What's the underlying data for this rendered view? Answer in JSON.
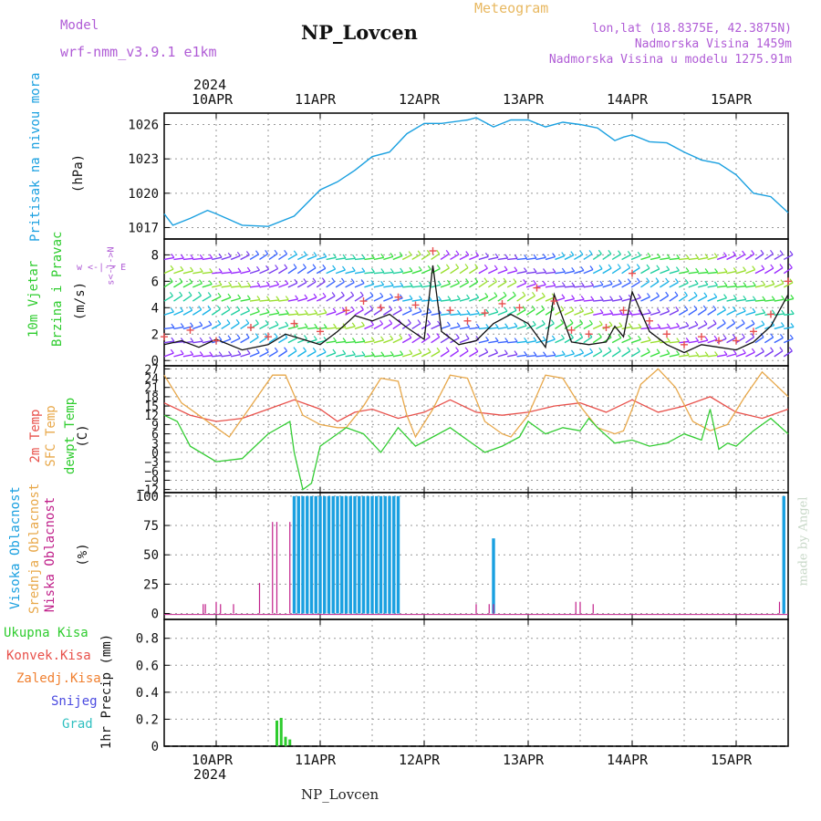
{
  "header": {
    "model_label": "Model",
    "model_name": "wrf-nmm_v3.9.1 e1km",
    "title": "NP_Lovcen",
    "product": "Meteogram",
    "coords": "lon,lat (18.8375E, 42.3875N)",
    "elevation": "Nadmorska Visina 1459m",
    "model_elevation": "Nadmorska Visina u modelu 1275.91m"
  },
  "dates": {
    "year": "2024",
    "days": [
      "10APR",
      "11APR",
      "12APR",
      "13APR",
      "14APR",
      "15APR"
    ]
  },
  "labels": {
    "pressure": "Pritisak na nivou mora",
    "pressure_unit": "(hPa)",
    "wind_1": "10m Vjetar",
    "wind_2": "Brzina i Pravac",
    "wind_unit": "(m/s)",
    "wind_dir_1": "w <-|-> E",
    "wind_dir_2": "s<-|->N",
    "temp_1": "2m Temp",
    "temp_2": "SFC Temp",
    "temp_3": "dewpt Temp",
    "temp_unit": "(C)",
    "cloud_1": "Visoka Oblacnost",
    "cloud_2": "Srednja Oblacnost",
    "cloud_3": "Niska Oblacnost",
    "cloud_unit": "(%)",
    "precip_axis": "1hr Precip (mm)",
    "precip_legend": [
      "Ukupna Kisa",
      "Konvek.Kisa",
      "Zaledj.Kisa",
      "Snijeg",
      "Grad"
    ],
    "credit": "made by Angel",
    "footer": "NP_Lovcen"
  },
  "colors": {
    "pressure": "#1aa0e0",
    "temp2m": "#e8504a",
    "sfc": "#e8a84a",
    "dew": "#33cc33",
    "high_cloud": "#1aa0e0",
    "low_cloud": "#c0208a",
    "precip_total": "#2ecc2e",
    "wind_speed": "#111111",
    "gust": "#e85050",
    "label_purple": "#b05cd6"
  },
  "chart_data": [
    {
      "type": "line",
      "name": "pressure",
      "x_range": [
        0,
        144
      ],
      "yticks": [
        1017,
        1020,
        1023,
        1026
      ],
      "ylim": [
        1016,
        1027
      ],
      "grid": true,
      "x": [
        0,
        2,
        6,
        10,
        12,
        18,
        24,
        30,
        36,
        40,
        44,
        48,
        52,
        56,
        60,
        64,
        70,
        72,
        76,
        80,
        84,
        88,
        92,
        96,
        100,
        104,
        106,
        108,
        112,
        116,
        120,
        124,
        128,
        132,
        136,
        140,
        144
      ],
      "values": [
        1018.2,
        1017.2,
        1017.8,
        1018.5,
        1018.2,
        1017.2,
        1017.1,
        1018.0,
        1020.3,
        1021.0,
        1022.0,
        1023.2,
        1023.6,
        1025.2,
        1026.1,
        1026.1,
        1026.4,
        1026.6,
        1025.8,
        1026.4,
        1026.4,
        1025.8,
        1026.2,
        1026.0,
        1025.7,
        1024.6,
        1024.9,
        1025.1,
        1024.5,
        1024.4,
        1023.6,
        1022.9,
        1022.6,
        1021.6,
        1020.0,
        1019.7,
        1018.3
      ]
    },
    {
      "type": "line",
      "name": "wind",
      "x_range": [
        0,
        144
      ],
      "yticks": [
        0,
        2,
        4,
        6,
        8
      ],
      "ylim": [
        -0.4,
        9.2
      ],
      "speed_x": [
        0,
        4,
        8,
        12,
        18,
        24,
        28,
        32,
        36,
        40,
        44,
        48,
        52,
        56,
        60,
        62,
        64,
        68,
        72,
        76,
        80,
        84,
        88,
        90,
        94,
        98,
        102,
        104,
        106,
        108,
        112,
        116,
        120,
        124,
        128,
        132,
        136,
        140,
        144
      ],
      "speed": [
        1.2,
        1.5,
        1.0,
        1.6,
        0.8,
        1.2,
        2.0,
        1.6,
        1.2,
        2.2,
        3.4,
        3.0,
        3.5,
        2.5,
        1.6,
        7.2,
        2.2,
        1.2,
        1.5,
        2.8,
        3.5,
        2.8,
        1.0,
        5.0,
        1.4,
        1.2,
        1.4,
        2.6,
        1.8,
        5.2,
        2.2,
        1.2,
        0.6,
        1.2,
        1.0,
        0.8,
        1.4,
        2.6,
        5.0
      ],
      "gust_x": [
        0,
        6,
        12,
        20,
        24,
        30,
        36,
        42,
        46,
        50,
        54,
        58,
        62,
        66,
        70,
        74,
        78,
        82,
        86,
        90,
        94,
        98,
        102,
        106,
        108,
        112,
        116,
        120,
        124,
        128,
        132,
        136,
        140,
        144
      ],
      "gust": [
        1.8,
        2.3,
        1.5,
        2.5,
        1.8,
        2.8,
        2.2,
        3.8,
        4.5,
        4.0,
        4.8,
        4.2,
        8.3,
        3.8,
        3.0,
        3.6,
        4.3,
        4.0,
        5.5,
        4.5,
        2.3,
        2.0,
        2.5,
        3.8,
        6.6,
        3.0,
        2.0,
        1.2,
        1.8,
        1.5,
        1.5,
        2.2,
        3.5,
        6.0
      ]
    },
    {
      "type": "line",
      "name": "temperature",
      "x_range": [
        0,
        144
      ],
      "yticks": [
        -12,
        -9,
        -6,
        -3,
        0,
        3,
        6,
        9,
        12,
        15,
        18,
        21,
        24,
        27
      ],
      "ylim": [
        -13,
        28
      ],
      "series": [
        {
          "name": "2m Temp",
          "x": [
            0,
            6,
            12,
            18,
            24,
            30,
            36,
            40,
            44,
            48,
            54,
            60,
            66,
            72,
            78,
            84,
            90,
            96,
            102,
            108,
            114,
            120,
            126,
            132,
            138,
            144
          ],
          "values": [
            16,
            12,
            10,
            11,
            14,
            17,
            14,
            10,
            13,
            14,
            11,
            13,
            17,
            13,
            12,
            13,
            15,
            16,
            13,
            17,
            13,
            15,
            18,
            13,
            11,
            14
          ]
        },
        {
          "name": "SFC Temp",
          "x": [
            0,
            4,
            8,
            12,
            15,
            20,
            25,
            28,
            32,
            36,
            40,
            42,
            46,
            50,
            54,
            56,
            58,
            62,
            66,
            70,
            74,
            78,
            80,
            84,
            88,
            92,
            96,
            100,
            104,
            106,
            108,
            110,
            114,
            118,
            122,
            126,
            130,
            134,
            138,
            141,
            144
          ],
          "values": [
            25,
            16,
            12,
            8,
            5,
            15,
            25,
            25,
            12,
            9,
            8,
            8,
            15,
            24,
            23,
            12,
            5,
            14,
            25,
            24,
            10,
            6,
            5,
            12,
            25,
            24,
            15,
            8,
            6,
            7,
            14,
            22,
            27,
            21,
            10,
            7,
            9,
            18,
            26,
            22,
            18
          ]
        },
        {
          "name": "dewpt Temp",
          "x": [
            0,
            3,
            6,
            12,
            18,
            24,
            29,
            30,
            32,
            34,
            36,
            38,
            42,
            46,
            50,
            54,
            58,
            62,
            66,
            70,
            74,
            78,
            82,
            84,
            88,
            92,
            96,
            98,
            100,
            104,
            108,
            112,
            116,
            120,
            124,
            126,
            128,
            130,
            132,
            136,
            140,
            144
          ],
          "values": [
            12,
            10,
            2,
            -3,
            -2,
            6,
            10,
            0,
            -12,
            -10,
            2,
            4,
            8,
            6,
            0,
            8,
            2,
            5,
            8,
            4,
            0,
            2,
            5,
            10,
            6,
            8,
            7,
            11,
            8,
            3,
            4,
            2,
            3,
            6,
            4,
            14,
            1,
            3,
            2,
            7,
            11,
            6
          ]
        }
      ]
    },
    {
      "type": "bar",
      "name": "cloud_cover",
      "x_range": [
        0,
        144
      ],
      "yticks": [
        0,
        25,
        50,
        75,
        100
      ],
      "ylim": [
        -5,
        103
      ],
      "series": [
        {
          "name": "Visoka Oblacnost",
          "x": [
            30,
            31,
            32,
            33,
            34,
            35,
            36,
            37,
            38,
            39,
            40,
            41,
            42,
            43,
            44,
            45,
            46,
            47,
            48,
            49,
            50,
            51,
            52,
            53,
            54,
            76,
            143
          ],
          "values": [
            100,
            100,
            100,
            100,
            100,
            100,
            100,
            100,
            100,
            100,
            100,
            100,
            100,
            100,
            100,
            100,
            100,
            100,
            100,
            100,
            100,
            100,
            100,
            100,
            100,
            64,
            100
          ]
        },
        {
          "name": "Niska Oblacnost",
          "x": [
            9,
            9.5,
            12,
            13,
            16,
            22,
            25,
            26,
            29,
            72,
            75,
            76,
            95,
            96,
            99,
            142
          ],
          "values": [
            8,
            8,
            10,
            8,
            8,
            26,
            78,
            78,
            78,
            8,
            8,
            8,
            10,
            10,
            8,
            10
          ]
        }
      ]
    },
    {
      "type": "bar",
      "name": "precipitation",
      "x_range": [
        0,
        144
      ],
      "yticks": [
        0,
        0.2,
        0.4,
        0.6,
        0.8
      ],
      "ylim": [
        0,
        0.94
      ],
      "series": [
        {
          "name": "Ukupna Kisa",
          "x": [
            26,
            27,
            28,
            29
          ],
          "values": [
            0.19,
            0.21,
            0.07,
            0.05
          ]
        }
      ]
    }
  ]
}
